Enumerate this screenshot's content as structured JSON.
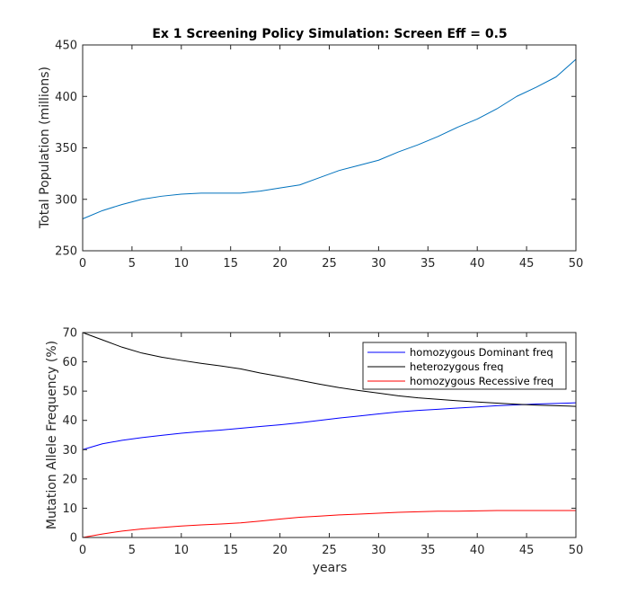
{
  "chart_data": [
    {
      "type": "line",
      "title": "Ex 1 Screening Policy Simulation: Screen Eff = 0.5",
      "xlabel": "",
      "ylabel": "Total Population (millions)",
      "xlim": [
        0,
        50
      ],
      "ylim": [
        250,
        450
      ],
      "xticks": [
        "0",
        "5",
        "10",
        "15",
        "20",
        "25",
        "30",
        "35",
        "40",
        "45",
        "50"
      ],
      "yticks": [
        "250",
        "300",
        "350",
        "400",
        "450"
      ],
      "grid": true,
      "x": [
        0,
        2,
        4,
        6,
        8,
        10,
        12,
        14,
        16,
        18,
        20,
        22,
        24,
        26,
        28,
        30,
        32,
        34,
        36,
        38,
        40,
        42,
        44,
        46,
        48,
        50
      ],
      "series": [
        {
          "color": "#0072BD",
          "values": [
            281,
            289,
            295,
            300,
            303,
            305,
            306,
            306,
            306,
            308,
            311,
            314,
            321,
            328,
            333,
            338,
            346,
            353,
            361,
            370,
            378,
            388,
            400,
            409,
            419,
            436
          ]
        }
      ]
    },
    {
      "type": "line",
      "title": "",
      "xlabel": "years",
      "ylabel": "Mutation Allele Frequency (%)",
      "xlim": [
        0,
        50
      ],
      "ylim": [
        0,
        70
      ],
      "xticks": [
        "0",
        "5",
        "10",
        "15",
        "20",
        "25",
        "30",
        "35",
        "40",
        "45",
        "50"
      ],
      "yticks": [
        "0",
        "10",
        "20",
        "30",
        "40",
        "50",
        "60",
        "70"
      ],
      "grid": true,
      "legend_position": "top-right",
      "x": [
        0,
        2,
        4,
        6,
        8,
        10,
        12,
        14,
        16,
        18,
        20,
        22,
        24,
        26,
        28,
        30,
        32,
        34,
        36,
        38,
        40,
        42,
        44,
        46,
        48,
        50
      ],
      "series": [
        {
          "name": "homozygous Dominant freq",
          "color": "#0000FF",
          "values": [
            30,
            32,
            33.2,
            34.1,
            34.9,
            35.6,
            36.2,
            36.7,
            37.3,
            37.9,
            38.5,
            39.2,
            40.0,
            40.8,
            41.5,
            42.2,
            42.9,
            43.4,
            43.8,
            44.2,
            44.6,
            45.0,
            45.3,
            45.6,
            45.8,
            46.0
          ]
        },
        {
          "name": "heterozygous freq",
          "color": "#000000",
          "values": [
            70,
            67.5,
            65.0,
            63.0,
            61.6,
            60.5,
            59.5,
            58.6,
            57.6,
            56.2,
            55.0,
            53.7,
            52.4,
            51.2,
            50.2,
            49.3,
            48.4,
            47.7,
            47.2,
            46.7,
            46.3,
            45.9,
            45.5,
            45.2,
            45.0,
            44.8
          ]
        },
        {
          "name": "homozygous Recessive freq",
          "color": "#FF0000",
          "values": [
            0,
            1.2,
            2.2,
            2.9,
            3.4,
            3.9,
            4.3,
            4.6,
            5.0,
            5.6,
            6.3,
            6.9,
            7.3,
            7.7,
            8.0,
            8.3,
            8.6,
            8.8,
            9.0,
            9.0,
            9.1,
            9.2,
            9.2,
            9.2,
            9.2,
            9.2
          ]
        }
      ]
    }
  ]
}
